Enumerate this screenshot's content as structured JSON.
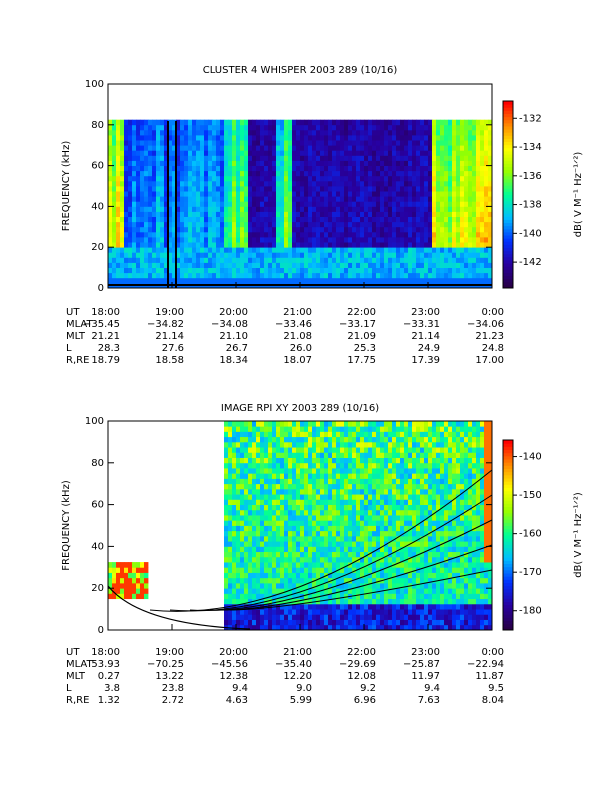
{
  "chart_data": [
    {
      "type": "heatmap",
      "title": "CLUSTER 4 WHISPER 2003 289 (10/16)",
      "ylabel": "FREQUENCY (kHz)",
      "ylim": [
        0,
        100
      ],
      "yticks": [
        0,
        20,
        40,
        60,
        80,
        100
      ],
      "colorbar_label": "dB( V M⁻¹ Hz⁻¹ᐟ²)",
      "clim": [
        -143.8,
        -130.8
      ],
      "cticks": [
        -132,
        -134,
        -136,
        -138,
        -140,
        -142
      ],
      "row_labels": [
        "UT",
        "MLAT",
        "MLT",
        "L",
        "R,RE"
      ],
      "categories": [
        "18:00",
        "19:00",
        "20:00",
        "21:00",
        "22:00",
        "23:00",
        "0:00"
      ],
      "rows": [
        [
          "−35.45",
          "−34.82",
          "−34.08",
          "−33.46",
          "−33.17",
          "−33.31",
          "−34.06"
        ],
        [
          "21.21",
          "21.14",
          "21.10",
          "21.08",
          "21.09",
          "21.14",
          "21.23"
        ],
        [
          "28.3",
          "27.6",
          "26.7",
          "26.0",
          "25.3",
          "24.9",
          "24.8"
        ],
        [
          "18.79",
          "18.58",
          "18.34",
          "18.07",
          "17.75",
          "17.39",
          "17.00"
        ]
      ]
    },
    {
      "type": "heatmap",
      "title": "IMAGE RPI XY 2003 289 (10/16)",
      "ylabel": "FREQUENCY (kHz)",
      "ylim": [
        0,
        100
      ],
      "yticks": [
        0,
        20,
        40,
        60,
        80,
        100
      ],
      "colorbar_label": "dB( V M⁻¹ Hz⁻¹ᐟ²)",
      "clim": [
        -185,
        -135.7
      ],
      "cticks": [
        -140,
        -150,
        -160,
        -170,
        -180
      ],
      "row_labels": [
        "UT",
        "MLAT",
        "MLT",
        "L",
        "R,RE"
      ],
      "categories": [
        "18:00",
        "19:00",
        "20:00",
        "21:00",
        "22:00",
        "23:00",
        "0:00"
      ],
      "rows": [
        [
          "53.93",
          "−70.25",
          "−45.56",
          "−35.40",
          "−29.69",
          "−25.87",
          "−22.94"
        ],
        [
          "0.27",
          "13.22",
          "12.38",
          "12.20",
          "12.08",
          "11.97",
          "11.87"
        ],
        [
          "3.8",
          "23.8",
          "9.4",
          "9.0",
          "9.2",
          "9.4",
          "9.5"
        ],
        [
          "1.32",
          "2.72",
          "4.63",
          "5.99",
          "6.96",
          "7.63",
          "8.04"
        ]
      ]
    }
  ]
}
